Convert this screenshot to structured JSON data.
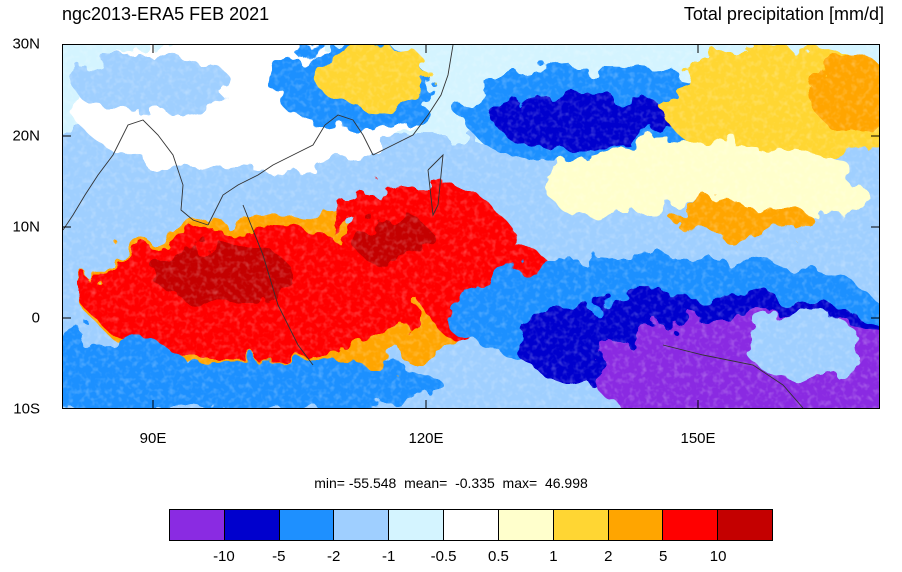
{
  "header": {
    "title_left": "ngc2013-ERA5 FEB 2021",
    "title_right": "Total precipitation [mm/d]"
  },
  "map": {
    "lat_labels": [
      "30N",
      "20N",
      "10N",
      "0",
      "10S"
    ],
    "lon_labels": [
      "90E",
      "120E",
      "150E"
    ],
    "lat_range": [
      -10,
      30
    ],
    "lon_range": [
      80,
      170
    ]
  },
  "stats": {
    "text": "min= -55.548  mean=  -0.335  max=  46.998"
  },
  "colorbar": {
    "colors": [
      "#8a2be2",
      "#0000cd",
      "#1e90ff",
      "#9fcfff",
      "#d4f4ff",
      "#ffffff",
      "#ffffcc",
      "#ffd633",
      "#ffa500",
      "#ff0000",
      "#c40000"
    ],
    "labels": [
      "-10",
      "-5",
      "-2",
      "-1",
      "-0.5",
      "0.5",
      "1",
      "2",
      "5",
      "10"
    ]
  }
}
